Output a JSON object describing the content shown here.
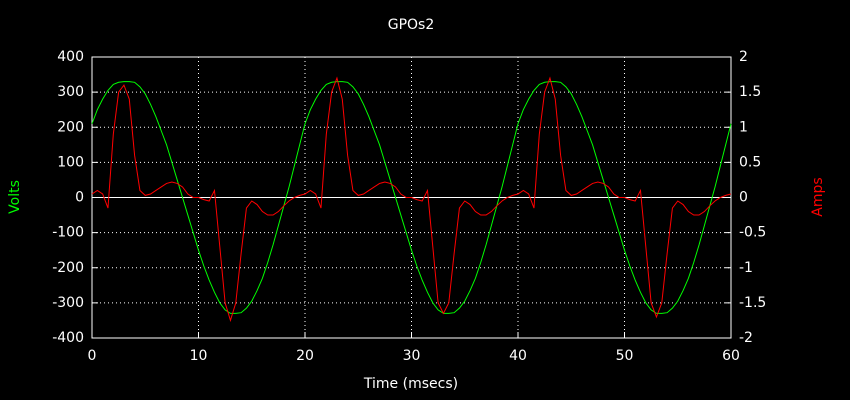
{
  "chart_data": {
    "type": "line",
    "title": "GPOs2",
    "xlabel": "Time (msecs)",
    "ylabel": "Volts",
    "y2label": "Amps",
    "x": [
      0,
      0.5,
      1,
      1.5,
      2,
      2.5,
      3,
      3.5,
      4,
      4.5,
      5,
      5.5,
      6,
      6.5,
      7,
      7.5,
      8,
      8.5,
      9,
      9.5,
      10,
      10.5,
      11,
      11.5,
      12,
      12.5,
      13,
      13.5,
      14,
      14.5,
      15,
      15.5,
      16,
      16.5,
      17,
      17.5,
      18,
      18.5,
      19,
      19.5,
      20,
      20.5,
      21,
      21.5,
      22,
      22.5,
      23,
      23.5,
      24,
      24.5,
      25,
      25.5,
      26,
      26.5,
      27,
      27.5,
      28,
      28.5,
      29,
      29.5,
      30,
      30.5,
      31,
      31.5,
      32,
      32.5,
      33,
      33.5,
      34,
      34.5,
      35,
      35.5,
      36,
      36.5,
      37,
      37.5,
      38,
      38.5,
      39,
      39.5,
      40,
      40.5,
      41,
      41.5,
      42,
      42.5,
      43,
      43.5,
      44,
      44.5,
      45,
      45.5,
      46,
      46.5,
      47,
      47.5,
      48,
      48.5,
      49,
      49.5,
      50,
      50.5,
      51,
      51.5,
      52,
      52.5,
      53,
      53.5,
      54,
      54.5,
      55,
      55.5,
      56,
      56.5,
      57,
      57.5,
      58,
      58.5,
      59,
      59.5,
      60
    ],
    "series": [
      {
        "color": "#00ff00",
        "axis": "y",
        "values": [
          210,
          250,
          280,
          305,
          322,
          328,
          330,
          330,
          328,
          315,
          295,
          265,
          230,
          190,
          150,
          100,
          50,
          0,
          -50,
          -100,
          -150,
          -195,
          -235,
          -270,
          -300,
          -320,
          -330,
          -330,
          -328,
          -315,
          -295,
          -265,
          -230,
          -185,
          -135,
          -80,
          -25,
          30,
          90,
          150,
          210,
          250,
          280,
          305,
          322,
          328,
          330,
          330,
          328,
          315,
          295,
          265,
          230,
          190,
          150,
          100,
          50,
          0,
          -50,
          -100,
          -150,
          -195,
          -235,
          -270,
          -300,
          -320,
          -330,
          -330,
          -328,
          -315,
          -295,
          -265,
          -230,
          -185,
          -135,
          -80,
          -25,
          30,
          90,
          150,
          210,
          250,
          280,
          305,
          322,
          328,
          330,
          330,
          328,
          315,
          295,
          265,
          230,
          190,
          150,
          100,
          50,
          0,
          -50,
          -100,
          -150,
          -195,
          -235,
          -270,
          -300,
          -320,
          -330,
          -330,
          -328,
          -315,
          -295,
          -265,
          -230,
          -185,
          -135,
          -80,
          -25,
          30,
          90,
          150,
          210
        ]
      },
      {
        "color": "#ff0000",
        "axis": "y2",
        "values": [
          0.05,
          0.1,
          0.05,
          -0.15,
          0.9,
          1.5,
          1.6,
          1.4,
          0.6,
          0.1,
          0.03,
          0.05,
          0.1,
          0.15,
          0.2,
          0.22,
          0.2,
          0.15,
          0.05,
          0,
          0,
          -0.03,
          -0.05,
          0.1,
          -0.7,
          -1.5,
          -1.75,
          -1.5,
          -0.8,
          -0.15,
          -0.05,
          -0.1,
          -0.2,
          -0.25,
          -0.25,
          -0.2,
          -0.12,
          -0.05,
          0,
          0.03,
          0.05,
          0.1,
          0.05,
          -0.15,
          0.9,
          1.5,
          1.7,
          1.4,
          0.6,
          0.1,
          0.03,
          0.05,
          0.1,
          0.15,
          0.2,
          0.22,
          0.2,
          0.15,
          0.05,
          0,
          0,
          -0.03,
          -0.05,
          0.1,
          -0.7,
          -1.5,
          -1.65,
          -1.5,
          -0.8,
          -0.15,
          -0.05,
          -0.1,
          -0.2,
          -0.25,
          -0.25,
          -0.2,
          -0.12,
          -0.05,
          0,
          0.03,
          0.05,
          0.1,
          0.05,
          -0.15,
          0.9,
          1.5,
          1.7,
          1.4,
          0.6,
          0.1,
          0.03,
          0.05,
          0.1,
          0.15,
          0.2,
          0.22,
          0.2,
          0.15,
          0.05,
          0,
          0,
          -0.03,
          -0.05,
          0.1,
          -0.7,
          -1.5,
          -1.7,
          -1.5,
          -0.8,
          -0.15,
          -0.05,
          -0.1,
          -0.2,
          -0.25,
          -0.25,
          -0.2,
          -0.12,
          -0.05,
          0,
          0.03,
          0.05
        ]
      }
    ],
    "xlim": [
      0,
      60
    ],
    "xticks": [
      0,
      10,
      20,
      30,
      40,
      50,
      60
    ],
    "ylim": [
      -400,
      400
    ],
    "yticks": [
      -400,
      -300,
      -200,
      -100,
      0,
      100,
      200,
      300,
      400
    ],
    "y2lim": [
      -2,
      2
    ],
    "y2ticks": [
      -2,
      -1.5,
      -1,
      -0.5,
      0,
      0.5,
      1,
      1.5,
      2
    ],
    "grid": true,
    "background": "#000000",
    "text_color": "#ffffff"
  }
}
